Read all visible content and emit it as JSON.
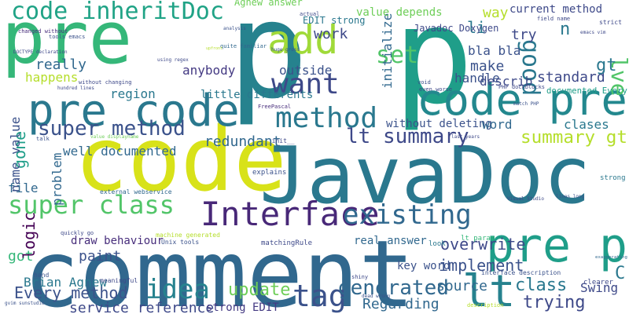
{
  "colors": {
    "background": "#ffffff",
    "purple": "#440154",
    "indigo": "#482878",
    "blue_violet": "#3e4989",
    "blue": "#31688e",
    "teal_blue": "#26828e",
    "teal": "#1f9e89",
    "green": "#35b779",
    "light_green": "#6ece58",
    "lime": "#b5de2b",
    "yellow": "#fde725"
  },
  "words": [
    {
      "text": "comment",
      "color": "#31688e"
    },
    {
      "text": "code",
      "color": "#d8e219"
    },
    {
      "text": "JavaDoc",
      "color": "#2a788e"
    },
    {
      "text": "p",
      "color": "#26828e"
    },
    {
      "text": "p",
      "color": "#1f9e89"
    },
    {
      "text": "pre",
      "color": "#35b779"
    },
    {
      "text": "pre code",
      "color": "#2a788e"
    },
    {
      "text": "code pre",
      "color": "#23888e"
    },
    {
      "text": "Interface",
      "color": "#482878"
    },
    {
      "text": "pre p",
      "color": "#1f9e89"
    },
    {
      "text": "lt",
      "color": "#26828e"
    },
    {
      "text": "code inheritDoc",
      "color": "#20a386"
    },
    {
      "text": "add",
      "color": "#a0da39"
    },
    {
      "text": "method",
      "color": "#2a788e"
    },
    {
      "text": "want",
      "color": "#3e4989"
    },
    {
      "text": "super class",
      "color": "#52c569"
    },
    {
      "text": "existing",
      "color": "#31688e"
    },
    {
      "text": "super method",
      "color": "#3b528b"
    },
    {
      "text": "tag",
      "color": "#3b528b"
    },
    {
      "text": "idea",
      "color": "#26828e"
    },
    {
      "text": "lve",
      "color": "#52c569"
    },
    {
      "text": "good",
      "color": "#2a788e"
    },
    {
      "text": "set",
      "color": "#52c569"
    },
    {
      "text": "lt summary",
      "color": "#3e4989"
    },
    {
      "text": "summary gt",
      "color": "#b5de2b"
    },
    {
      "text": "generated",
      "color": "#31688e"
    },
    {
      "text": "trying",
      "color": "#3e4989"
    },
    {
      "text": "Every method",
      "color": "#3b528b"
    },
    {
      "text": "update",
      "color": "#6ece58"
    },
    {
      "text": "service reference",
      "color": "#3e4989"
    },
    {
      "text": "class",
      "color": "#2a788e"
    },
    {
      "text": "overwrite",
      "color": "#3e4989"
    },
    {
      "text": "implement",
      "color": "#3b528b"
    },
    {
      "text": "source",
      "color": "#31688e"
    },
    {
      "text": "Regarding",
      "color": "#31688e"
    },
    {
      "text": "Swing",
      "color": "#3e4989"
    },
    {
      "text": "paint",
      "color": "#3b528b"
    },
    {
      "text": "got",
      "color": "#35b779"
    },
    {
      "text": "logic",
      "color": "#440154"
    },
    {
      "text": "Brian Agnew",
      "color": "#2a788e"
    },
    {
      "text": "strong EDIT",
      "color": "#443a83"
    },
    {
      "text": "draw behaviour",
      "color": "#472d7b"
    },
    {
      "text": "real answer",
      "color": "#31688e"
    },
    {
      "text": "key word",
      "color": "#3b528b"
    },
    {
      "text": "redundant",
      "color": "#31688e"
    },
    {
      "text": "well documented",
      "color": "#31688e"
    },
    {
      "text": "gone",
      "color": "#1f9e89"
    },
    {
      "text": "name value",
      "color": "#3b528b"
    },
    {
      "text": "file",
      "color": "#31688e"
    },
    {
      "text": "problem",
      "color": "#31688e"
    },
    {
      "text": "region",
      "color": "#2a788e"
    },
    {
      "text": "happens",
      "color": "#b5de2b"
    },
    {
      "text": "really",
      "color": "#31688e"
    },
    {
      "text": "anybody",
      "color": "#443a83"
    },
    {
      "text": "little differents",
      "color": "#2a788e"
    },
    {
      "text": "outside",
      "color": "#3b528b"
    },
    {
      "text": "work",
      "color": "#3e4989"
    },
    {
      "text": "initialize",
      "color": "#31688e"
    },
    {
      "text": "make",
      "color": "#3b528b"
    },
    {
      "text": "bla bla",
      "color": "#3b528b"
    },
    {
      "text": "describ",
      "color": "#3e4989"
    },
    {
      "text": "standard",
      "color": "#3e4989"
    },
    {
      "text": "handle",
      "color": "#3b528b"
    },
    {
      "text": "documented Every",
      "color": "#1f9e89"
    },
    {
      "text": "clases",
      "color": "#2a788e"
    },
    {
      "text": "without deleting",
      "color": "#3b528b"
    },
    {
      "text": "word",
      "color": "#31688e"
    },
    {
      "text": "try",
      "color": "#3e4989"
    },
    {
      "text": "li",
      "color": "#2a788e"
    },
    {
      "text": "way",
      "color": "#b5de2b"
    },
    {
      "text": "n",
      "color": "#2a788e"
    },
    {
      "text": "current method",
      "color": "#3e4989"
    },
    {
      "text": "value depends",
      "color": "#6ece58"
    },
    {
      "text": "Javadoc Doxygen",
      "color": "#3e4989"
    },
    {
      "text": "EDIT strong",
      "color": "#2a788e"
    },
    {
      "text": "Agnew answer",
      "color": "#6ece58"
    },
    {
      "text": "gt",
      "color": "#2a788e"
    },
    {
      "text": "C",
      "color": "#2a788e"
    },
    {
      "text": "Unix tools",
      "color": "#3b528b"
    },
    {
      "text": "interface description",
      "color": "#3b528b"
    },
    {
      "text": "lt param",
      "color": "#35b779"
    },
    {
      "text": "matchingRule",
      "color": "#3e4989"
    },
    {
      "text": "FreePascal",
      "color": "#472d7b"
    },
    {
      "text": "PHP dockblocks",
      "color": "#3e4989"
    },
    {
      "text": "explains",
      "color": "#3b528b"
    },
    {
      "text": "external webservice",
      "color": "#31688e"
    },
    {
      "text": "strong",
      "color": "#2a788e"
    },
    {
      "text": "clearer",
      "color": "#3e4989"
    },
    {
      "text": "meaningful",
      "color": "#3e4989"
    },
    {
      "text": "look",
      "color": "#2a788e"
    },
    {
      "text": "hand",
      "color": "#3b528b"
    },
    {
      "text": "strict",
      "color": "#3e4989"
    },
    {
      "text": "field name",
      "color": "#3e4989"
    },
    {
      "text": "tools emacs",
      "color": "#3b528b"
    },
    {
      "text": "DOCTYPE declaration",
      "color": "#3e4989"
    },
    {
      "text": "changed without",
      "color": "#472d7b"
    },
    {
      "text": "using regex",
      "color": "#3e4989"
    },
    {
      "text": "quite familiar",
      "color": "#31688e"
    },
    {
      "text": "huge gross",
      "color": "#3b528b"
    },
    {
      "text": "without changing",
      "color": "#3e4989"
    },
    {
      "text": "hundred lines",
      "color": "#3e4989"
    },
    {
      "text": "last years",
      "color": "#3e4989"
    },
    {
      "text": "lines long",
      "color": "#3b528b"
    },
    {
      "text": "even worse",
      "color": "#3e4989"
    },
    {
      "text": "match PHP",
      "color": "#3b528b"
    },
    {
      "text": "Visual Studio",
      "color": "#3e4989"
    },
    {
      "text": "exaggerating",
      "color": "#31688e"
    },
    {
      "text": "shiny",
      "color": "#3e4989"
    },
    {
      "text": "dead wrong",
      "color": "#3b528b"
    },
    {
      "text": "actual",
      "color": "#3e4989"
    },
    {
      "text": "void",
      "color": "#3b528b"
    },
    {
      "text": "quickly go",
      "color": "#3e4989"
    },
    {
      "text": "analysis",
      "color": "#3b528b"
    },
    {
      "text": "emacs vim",
      "color": "#3e4989"
    },
    {
      "text": "gvim sunstudio",
      "color": "#3b528b"
    },
    {
      "text": "__init__",
      "color": "#3e4989"
    },
    {
      "text": "value displayname",
      "color": "#6ece58"
    },
    {
      "text": "machine generated",
      "color": "#b5de2b"
    },
    {
      "text": "talk",
      "color": "#3b528b"
    },
    {
      "text": "description",
      "color": "#b5de2b"
    },
    {
      "text": "upfront",
      "color": "#b5de2b"
    }
  ]
}
